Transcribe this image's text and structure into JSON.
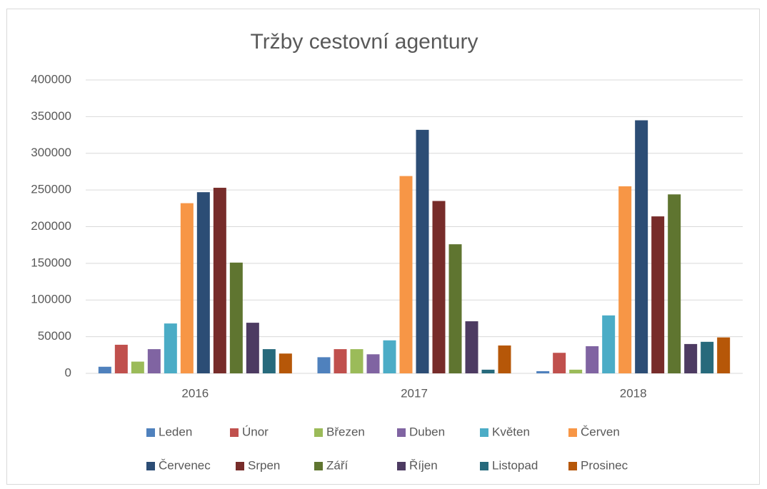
{
  "chart_data": {
    "type": "bar",
    "title": "Tržby cestovní agentury",
    "categories": [
      "2016",
      "2017",
      "2018"
    ],
    "series": [
      {
        "name": "Leden",
        "color": "#4f81bd",
        "values": [
          9000,
          22000,
          3000
        ]
      },
      {
        "name": "Únor",
        "color": "#c0504d",
        "values": [
          39000,
          33000,
          28000
        ]
      },
      {
        "name": "Březen",
        "color": "#9bbb59",
        "values": [
          16000,
          33000,
          5000
        ]
      },
      {
        "name": "Duben",
        "color": "#8064a2",
        "values": [
          33000,
          26000,
          37000
        ]
      },
      {
        "name": "Květen",
        "color": "#4bacc6",
        "values": [
          68000,
          45000,
          79000
        ]
      },
      {
        "name": "Červen",
        "color": "#f79646",
        "values": [
          232000,
          269000,
          255000
        ]
      },
      {
        "name": "Červenec",
        "color": "#2c4d75",
        "values": [
          247000,
          332000,
          345000
        ]
      },
      {
        "name": "Srpen",
        "color": "#772c2a",
        "values": [
          253000,
          235000,
          214000
        ]
      },
      {
        "name": "Září",
        "color": "#5f7530",
        "values": [
          151000,
          176000,
          244000
        ]
      },
      {
        "name": "Říjen",
        "color": "#4d3b62",
        "values": [
          69000,
          71000,
          40000
        ]
      },
      {
        "name": "Listopad",
        "color": "#276a7c",
        "values": [
          33000,
          5000,
          43000
        ]
      },
      {
        "name": "Prosinec",
        "color": "#b65708",
        "values": [
          27000,
          38000,
          49000
        ]
      }
    ],
    "ylim": [
      0,
      400000
    ],
    "yticks": [
      0,
      50000,
      100000,
      150000,
      200000,
      250000,
      300000,
      350000,
      400000
    ],
    "grid": true,
    "legend": "bottom"
  }
}
